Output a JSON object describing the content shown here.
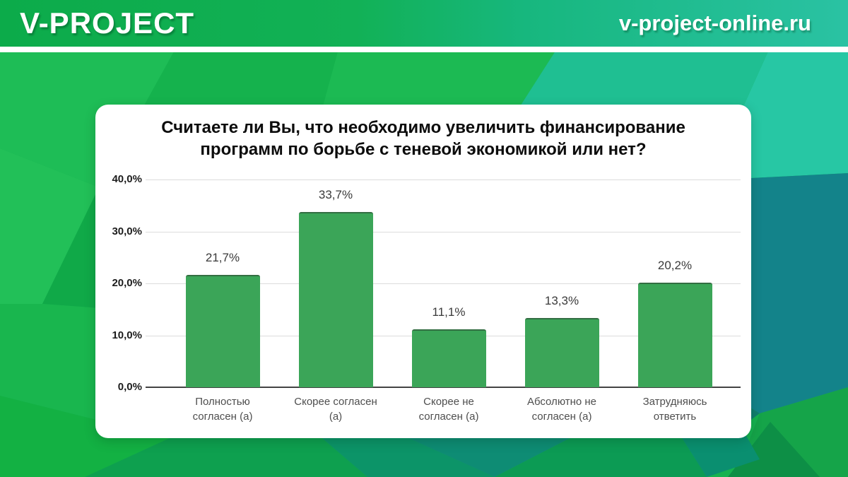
{
  "header": {
    "logo": "V-PROJECT",
    "site": "v-project-online.ru"
  },
  "colors": {
    "header_gradient_left": "#0cab4a",
    "header_gradient_right": "#2ac2a3",
    "background_green": "#14b050",
    "background_teal_dark": "#13838a",
    "bar_green": "#3ba558",
    "gridline": "#dcdcdc",
    "axis_line": "#434343",
    "card_background": "#ffffff"
  },
  "chart_data": {
    "type": "bar",
    "title": "Считаете ли Вы, что необходимо увеличить финансирование программ по борьбе с теневой экономикой или нет?",
    "title_lines": [
      "Считаете ли Вы, что необходимо увеличить финансирование",
      "программ по борьбе с теневой экономикой или нет?"
    ],
    "categories": [
      "Полностью согласен (а)",
      "Скорее согласен (а)",
      "Скорее не согласен (а)",
      "Абсолютно не согласен (а)",
      "Затрудняюсь ответить"
    ],
    "category_lines": [
      [
        "Полностью",
        "согласен (а)"
      ],
      [
        "Скорее согласен",
        "(а)"
      ],
      [
        "Скорее не",
        "согласен (а)"
      ],
      [
        "Абсолютно не",
        "согласен (а)"
      ],
      [
        "Затрудняюсь",
        "ответить"
      ]
    ],
    "values": [
      21.7,
      33.7,
      11.1,
      13.3,
      20.2
    ],
    "value_labels": [
      "21,7%",
      "33,7%",
      "11,1%",
      "13,3%",
      "20,2%"
    ],
    "y_ticks": [
      {
        "v": 0,
        "label": "0,0%"
      },
      {
        "v": 10,
        "label": "10,0%"
      },
      {
        "v": 20,
        "label": "20,0%"
      },
      {
        "v": 30,
        "label": "30,0%"
      },
      {
        "v": 40,
        "label": "40,0%"
      }
    ],
    "ylim": [
      0,
      40
    ],
    "xlabel": "",
    "ylabel": "",
    "grid": true,
    "legend": "none",
    "bar_color": "#3ba558"
  }
}
